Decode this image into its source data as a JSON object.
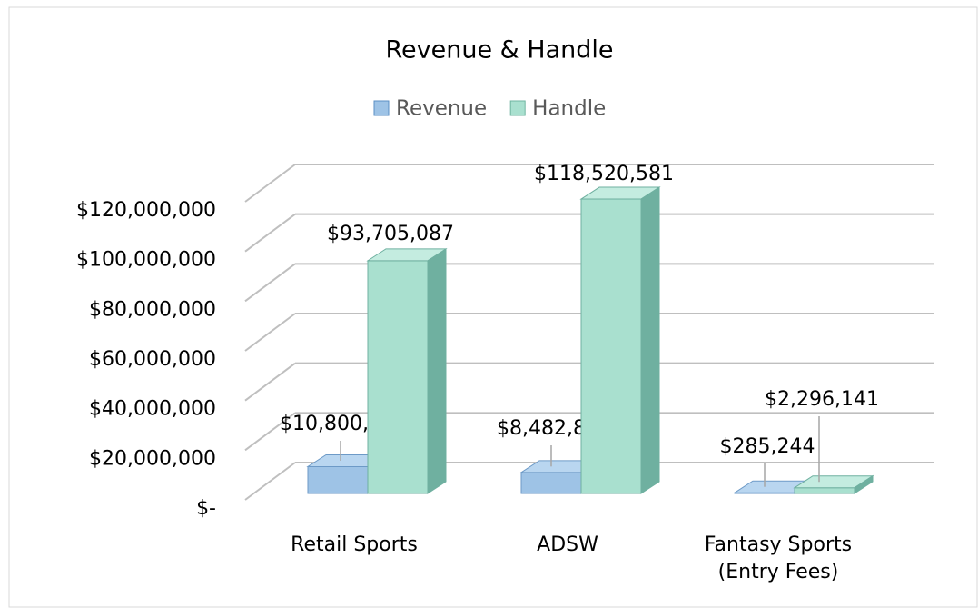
{
  "chart_data": {
    "type": "bar3d",
    "title": "Revenue & Handle",
    "categories": [
      "Retail Sports",
      "ADSW",
      "Fantasy Sports (Entry Fees)"
    ],
    "series": [
      {
        "name": "Revenue",
        "color": "#9ec3e6",
        "values": [
          10800798,
          8482893,
          285244
        ],
        "value_labels": [
          "$10,800,798",
          "$8,482,893",
          "$285,244"
        ]
      },
      {
        "name": "Handle",
        "color": "#a9e0cf",
        "values": [
          93705087,
          118520581,
          2296141
        ],
        "value_labels": [
          "$93,705,087",
          "$118,520,581",
          "$2,296,141"
        ]
      }
    ],
    "ylim": [
      0,
      120000000
    ],
    "yticks": [
      {
        "value": 0,
        "label": "$-"
      },
      {
        "value": 20000000,
        "label": "$20,000,000"
      },
      {
        "value": 40000000,
        "label": "$40,000,000"
      },
      {
        "value": 60000000,
        "label": "$60,000,000"
      },
      {
        "value": 80000000,
        "label": "$80,000,000"
      },
      {
        "value": 100000000,
        "label": "$100,000,000"
      },
      {
        "value": 120000000,
        "label": "$120,000,000"
      }
    ],
    "grid": true,
    "legend": "top"
  }
}
